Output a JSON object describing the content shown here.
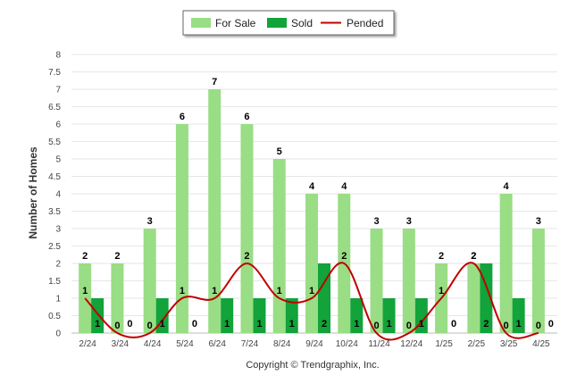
{
  "chart_data": {
    "type": "bar",
    "categories": [
      "2/24",
      "3/24",
      "4/24",
      "5/24",
      "6/24",
      "7/24",
      "8/24",
      "9/24",
      "10/24",
      "11/24",
      "12/24",
      "1/25",
      "2/25",
      "3/25",
      "4/25"
    ],
    "series": [
      {
        "name": "For Sale",
        "kind": "bar",
        "color": "#99dd85",
        "values": [
          2,
          2,
          3,
          6,
          7,
          6,
          5,
          4,
          4,
          3,
          3,
          2,
          2,
          4,
          3
        ]
      },
      {
        "name": "Sold",
        "kind": "bar",
        "color": "#12a33a",
        "values": [
          1,
          0,
          1,
          0,
          1,
          1,
          1,
          2,
          1,
          1,
          1,
          0,
          2,
          1,
          0
        ]
      },
      {
        "name": "Pended",
        "kind": "line",
        "color": "#c00000",
        "values": [
          1,
          0,
          0,
          1,
          1,
          2,
          1,
          1,
          2,
          0,
          0,
          1,
          2,
          0,
          0
        ]
      }
    ],
    "xlabel": "",
    "ylabel": "Number of Homes",
    "ylim": [
      0,
      8
    ],
    "yticks": [
      "0",
      "0.5",
      "1",
      "1.5",
      "2",
      "2.5",
      "3",
      "3.5",
      "4",
      "4.5",
      "5",
      "5.5",
      "6",
      "6.5",
      "7",
      "7.5",
      "8"
    ],
    "grid": true,
    "legend_position": "top-center",
    "footer": "Copyright © Trendgraphix, Inc."
  }
}
